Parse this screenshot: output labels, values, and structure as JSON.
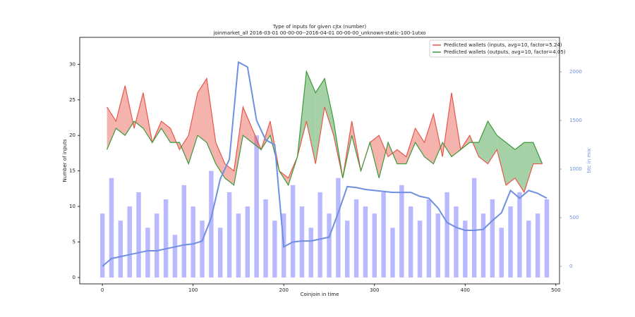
{
  "chart_data": {
    "type": "line",
    "title": "Type of inputs for given cjtx (number)",
    "subtitle": "joinmarket_all 2016-03-01 00-00-00--2016-04-01 00-00-00_unknown-static-100-1utxo",
    "xlabel": "Coinjoin in time",
    "ylabel": "Number of inputs",
    "y2label": "btc in mix",
    "xlim": [
      -25,
      504
    ],
    "ylim": [
      -0.9,
      33.8
    ],
    "y2lim": [
      -181,
      2355
    ],
    "xticks": [
      0,
      100,
      200,
      300,
      400,
      500
    ],
    "yticks": [
      0,
      5,
      10,
      15,
      20,
      25,
      30
    ],
    "y2ticks": [
      0,
      500,
      1000,
      1500,
      2000
    ],
    "legend": "upper right",
    "bars": {
      "color": "#8080ff",
      "x": [
        0,
        10,
        20,
        30,
        40,
        50,
        60,
        70,
        80,
        90,
        100,
        110,
        120,
        130,
        140,
        150,
        160,
        170,
        180,
        190,
        200,
        210,
        220,
        230,
        240,
        250,
        260,
        270,
        280,
        290,
        300,
        310,
        320,
        330,
        340,
        350,
        360,
        370,
        380,
        390,
        400,
        410,
        420,
        430,
        440,
        450,
        460,
        470,
        480,
        490
      ],
      "values": [
        9,
        14,
        8,
        10,
        12,
        7,
        9,
        11,
        6,
        13,
        10,
        8,
        15,
        7,
        12,
        9,
        10,
        20,
        11,
        8,
        9,
        13,
        10,
        7,
        12,
        9,
        14,
        8,
        11,
        10,
        9,
        12,
        7,
        13,
        10,
        8,
        11,
        9,
        12,
        10,
        8,
        14,
        9,
        11,
        7,
        10,
        12,
        8,
        9,
        11
      ]
    },
    "series": [
      {
        "name": "Predicted wallets (inputs, avg=10, factor=5.24)",
        "color": "#e8564a",
        "x": [
          5,
          15,
          25,
          35,
          45,
          55,
          65,
          75,
          85,
          95,
          105,
          115,
          125,
          135,
          145,
          155,
          165,
          175,
          185,
          195,
          205,
          215,
          225,
          235,
          245,
          255,
          265,
          275,
          285,
          295,
          305,
          315,
          325,
          335,
          345,
          355,
          365,
          375,
          385,
          395,
          405,
          415,
          425,
          435,
          445,
          455,
          465,
          475,
          485
        ],
        "values": [
          24,
          22,
          27,
          21,
          26,
          19,
          22,
          21,
          18,
          20,
          26,
          28,
          19,
          16,
          15,
          24,
          21,
          18,
          22,
          15,
          14,
          17,
          22,
          16,
          24,
          20,
          14,
          22,
          15,
          19,
          20,
          17,
          18,
          17,
          21,
          19,
          23,
          17,
          26,
          18,
          20,
          17,
          16,
          18,
          13,
          14,
          12,
          16,
          16
        ]
      },
      {
        "name": "Predicted wallets (outputs, avg=10, factor=4.05)",
        "color": "#3a9a3a",
        "x": [
          5,
          15,
          25,
          35,
          45,
          55,
          65,
          75,
          85,
          95,
          105,
          115,
          125,
          135,
          145,
          155,
          165,
          175,
          185,
          195,
          205,
          215,
          225,
          235,
          245,
          255,
          265,
          275,
          285,
          295,
          305,
          315,
          325,
          335,
          345,
          355,
          365,
          375,
          385,
          395,
          405,
          415,
          425,
          435,
          445,
          455,
          465,
          475,
          485
        ],
        "values": [
          18,
          21,
          20,
          22,
          21,
          19,
          21,
          19,
          19,
          16,
          20,
          19,
          16,
          14,
          13,
          20,
          19,
          18,
          20,
          15,
          13,
          17,
          29,
          26,
          28,
          22,
          14,
          20,
          15,
          19,
          14,
          19,
          16,
          16,
          19,
          17,
          16,
          19,
          17,
          18,
          19,
          19,
          22,
          20,
          19,
          18,
          19,
          19,
          16
        ]
      },
      {
        "name": "btc in mix",
        "color": "#6f8fe0",
        "axis": "y2",
        "x": [
          0,
          10,
          20,
          30,
          40,
          50,
          60,
          70,
          80,
          90,
          100,
          110,
          120,
          130,
          140,
          150,
          160,
          170,
          180,
          190,
          200,
          210,
          220,
          230,
          240,
          250,
          260,
          270,
          280,
          290,
          300,
          310,
          320,
          330,
          340,
          350,
          360,
          370,
          380,
          390,
          400,
          410,
          420,
          430,
          440,
          450,
          460,
          470,
          480,
          490
        ],
        "values": [
          0,
          80,
          100,
          120,
          140,
          160,
          160,
          180,
          200,
          220,
          230,
          260,
          500,
          900,
          1100,
          2100,
          2050,
          1500,
          1300,
          1250,
          200,
          250,
          260,
          260,
          280,
          300,
          550,
          820,
          810,
          790,
          780,
          770,
          760,
          760,
          760,
          720,
          700,
          600,
          450,
          400,
          370,
          370,
          380,
          470,
          550,
          780,
          700,
          780,
          750,
          700
        ]
      }
    ]
  }
}
